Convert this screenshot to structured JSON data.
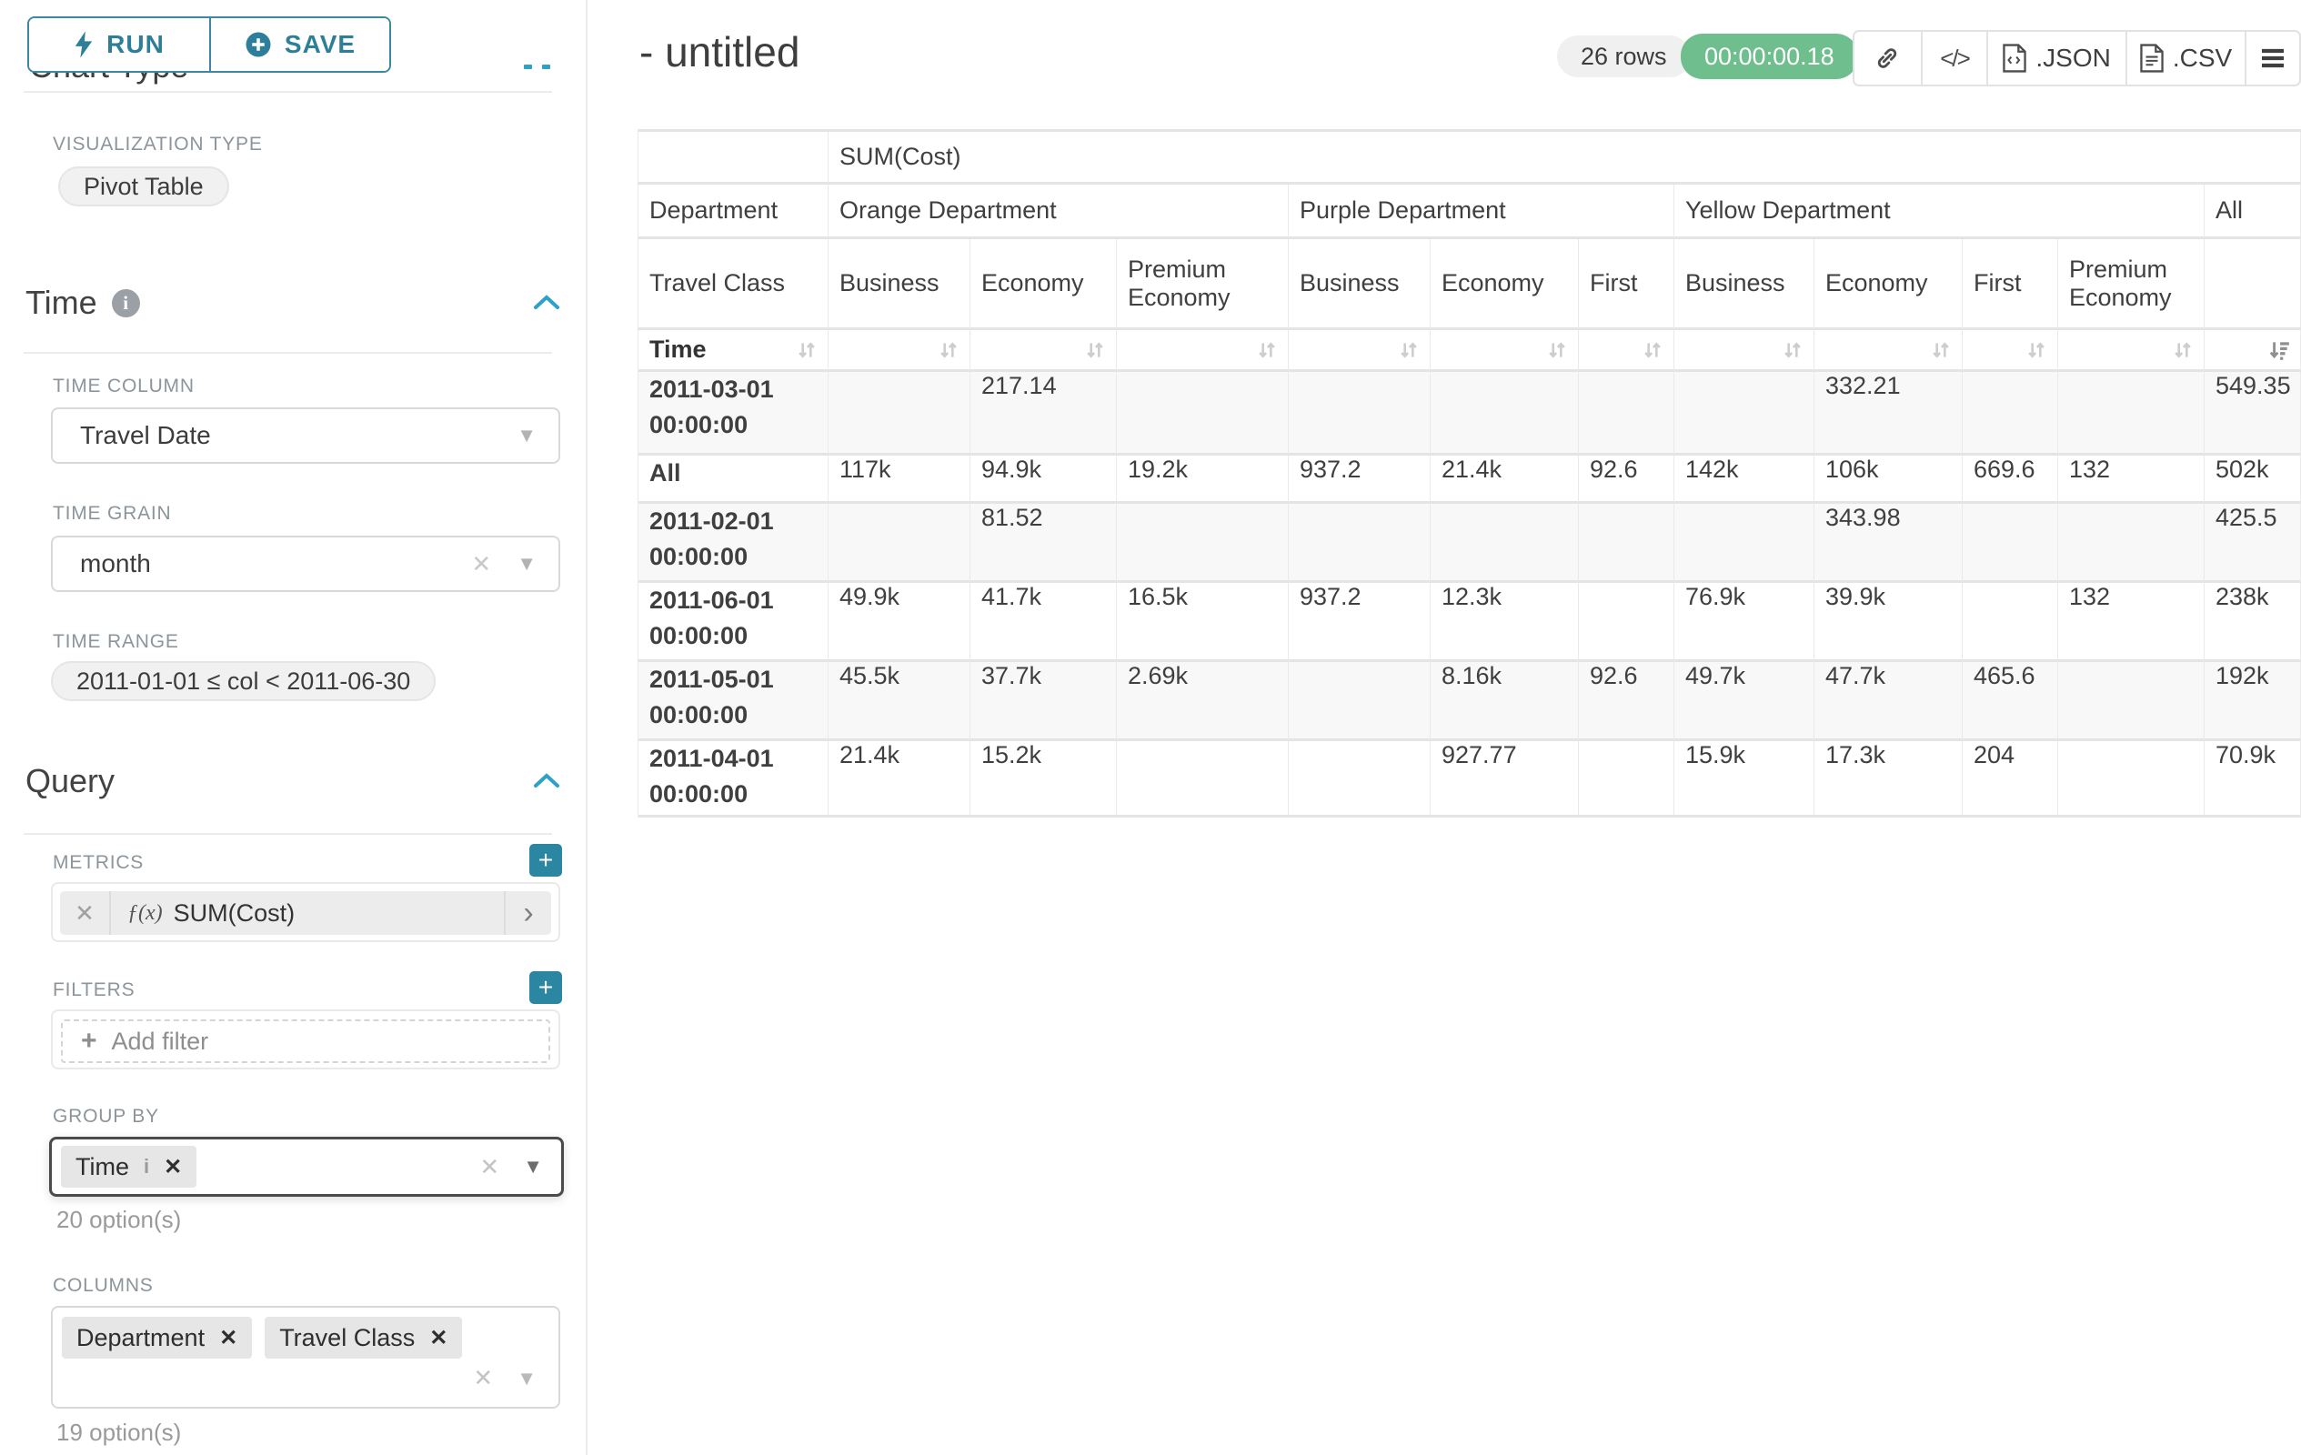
{
  "icons": {
    "clear_x": "✕",
    "caret_down": "▼",
    "chevron_right": "›",
    "plus": "+",
    "menu": "≡",
    "code": "</>",
    "info_i": "i",
    "fx": "ƒ(x)"
  },
  "sidebar": {
    "run_label": "RUN",
    "save_label": "SAVE",
    "scrolled_heading": "Chart Type",
    "viz": {
      "label": "VISUALIZATION TYPE",
      "value": "Pivot Table"
    },
    "time": {
      "title": "Time",
      "column_label": "TIME COLUMN",
      "column_value": "Travel Date",
      "grain_label": "TIME GRAIN",
      "grain_value": "month",
      "range_label": "TIME RANGE",
      "range_value": "2011-01-01 ≤ col < 2011-06-30"
    },
    "query": {
      "title": "Query",
      "metrics_label": "METRICS",
      "metric_value": "SUM(Cost)",
      "filters_label": "FILTERS",
      "add_filter": "Add filter",
      "groupby_label": "GROUP BY",
      "groupby_chips": [
        "Time"
      ],
      "groupby_hint": "20 option(s)",
      "columns_label": "COLUMNS",
      "columns_chips": [
        "Department",
        "Travel Class"
      ],
      "columns_hint": "19 option(s)"
    }
  },
  "header": {
    "title": "- untitled",
    "rows_badge": "26 rows",
    "timer_badge": "00:00:00.18",
    "json_label": ".JSON",
    "csv_label": ".CSV"
  },
  "pivot_table": {
    "metric_header": "SUM(Cost)",
    "department_label": "Department",
    "class_label": "Travel Class",
    "time_label": "Time",
    "column_groups": [
      {
        "label": "Orange Department",
        "classes": [
          "Business",
          "Economy",
          "Premium Economy"
        ]
      },
      {
        "label": "Purple Department",
        "classes": [
          "Business",
          "Economy",
          "First"
        ]
      },
      {
        "label": "Yellow Department",
        "classes": [
          "Business",
          "Economy",
          "First",
          "Premium Economy"
        ]
      },
      {
        "label": "All",
        "classes": [
          ""
        ]
      }
    ],
    "rows": [
      {
        "time": "2011-03-01 00:00:00",
        "values": [
          "",
          "217.14",
          "",
          "",
          "",
          "",
          "",
          "332.21",
          "",
          "",
          "549.35"
        ]
      },
      {
        "time": "All",
        "values": [
          "117k",
          "94.9k",
          "19.2k",
          "937.2",
          "21.4k",
          "92.6",
          "142k",
          "106k",
          "669.6",
          "132",
          "502k"
        ]
      },
      {
        "time": "2011-02-01 00:00:00",
        "values": [
          "",
          "81.52",
          "",
          "",
          "",
          "",
          "",
          "343.98",
          "",
          "",
          "425.5"
        ]
      },
      {
        "time": "2011-06-01 00:00:00",
        "values": [
          "49.9k",
          "41.7k",
          "16.5k",
          "937.2",
          "12.3k",
          "",
          "76.9k",
          "39.9k",
          "",
          "132",
          "238k"
        ]
      },
      {
        "time": "2011-05-01 00:00:00",
        "values": [
          "45.5k",
          "37.7k",
          "2.69k",
          "",
          "8.16k",
          "92.6",
          "49.7k",
          "47.7k",
          "465.6",
          "",
          "192k"
        ]
      },
      {
        "time": "2011-04-01 00:00:00",
        "values": [
          "21.4k",
          "15.2k",
          "",
          "",
          "927.77",
          "",
          "15.9k",
          "17.3k",
          "204",
          "",
          "70.9k"
        ]
      }
    ]
  }
}
